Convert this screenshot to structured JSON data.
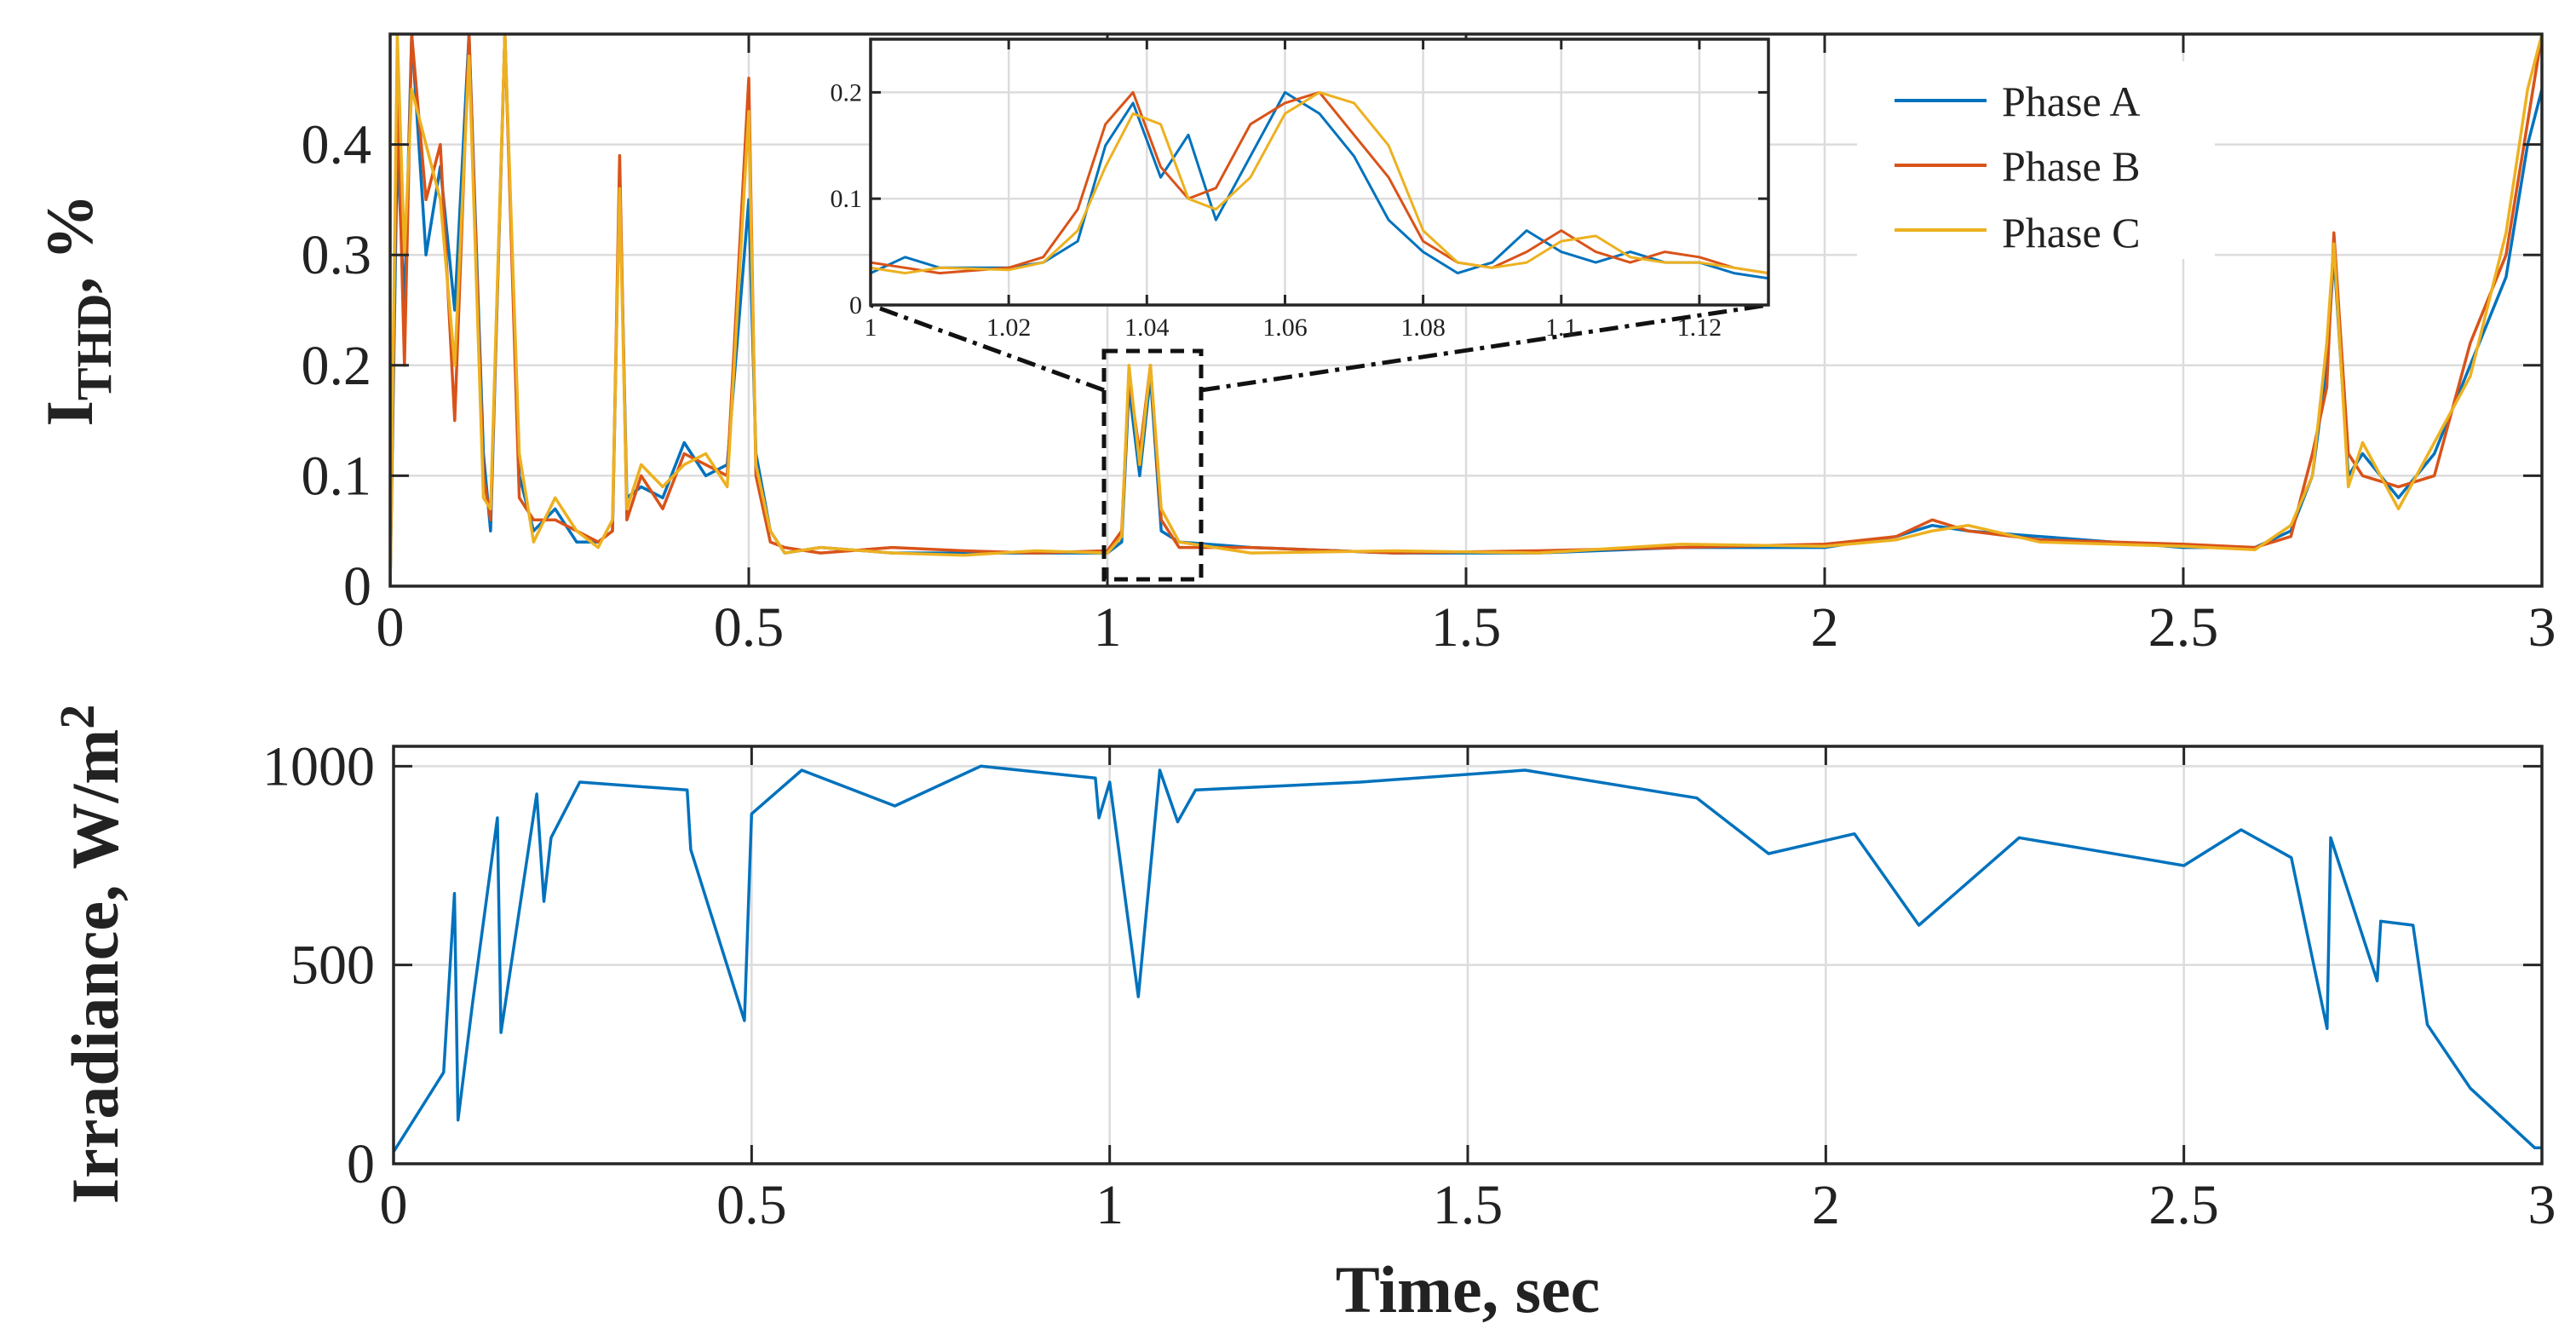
{
  "chart_data": [
    {
      "type": "line",
      "title": "",
      "xlabel": "",
      "ylabel": "I",
      "ylabel_sub": "THD",
      "ylabel_suffix": ", %",
      "xlim": [
        0,
        3
      ],
      "ylim": [
        0,
        0.5
      ],
      "xticks": [
        "0",
        "0.5",
        "1",
        "1.5",
        "2",
        "2.5",
        "3"
      ],
      "yticks": [
        "0",
        "0.1",
        "0.2",
        "0.3",
        "0.4"
      ],
      "grid": true,
      "legend_position": "top-right",
      "colors": {
        "Phase A": "#0072BD",
        "Phase B": "#D95319",
        "Phase C": "#EDB120"
      },
      "series": [
        {
          "name": "Phase A",
          "x": [
            0,
            0.01,
            0.02,
            0.03,
            0.05,
            0.07,
            0.09,
            0.11,
            0.13,
            0.14,
            0.16,
            0.18,
            0.2,
            0.23,
            0.26,
            0.29,
            0.31,
            0.32,
            0.33,
            0.35,
            0.38,
            0.41,
            0.44,
            0.47,
            0.5,
            0.51,
            0.53,
            0.55,
            0.6,
            0.7,
            0.8,
            0.9,
            1.0,
            1.02,
            1.03,
            1.045,
            1.06,
            1.075,
            1.1,
            1.2,
            1.4,
            1.6,
            1.8,
            2.0,
            2.1,
            2.15,
            2.2,
            2.3,
            2.5,
            2.6,
            2.65,
            2.68,
            2.7,
            2.71,
            2.73,
            2.75,
            2.8,
            2.85,
            2.9,
            2.95,
            2.98,
            3.0
          ],
          "values": [
            0.0,
            0.4,
            0.25,
            0.5,
            0.3,
            0.38,
            0.25,
            0.5,
            0.12,
            0.05,
            0.5,
            0.1,
            0.05,
            0.07,
            0.04,
            0.04,
            0.05,
            0.37,
            0.08,
            0.09,
            0.08,
            0.13,
            0.1,
            0.11,
            0.35,
            0.12,
            0.05,
            0.03,
            0.035,
            0.03,
            0.03,
            0.03,
            0.03,
            0.04,
            0.18,
            0.1,
            0.19,
            0.05,
            0.04,
            0.035,
            0.03,
            0.03,
            0.035,
            0.035,
            0.045,
            0.055,
            0.05,
            0.045,
            0.035,
            0.035,
            0.05,
            0.1,
            0.2,
            0.3,
            0.1,
            0.12,
            0.08,
            0.12,
            0.2,
            0.28,
            0.4,
            0.45
          ]
        },
        {
          "name": "Phase B",
          "x": [
            0,
            0.01,
            0.02,
            0.03,
            0.05,
            0.07,
            0.09,
            0.11,
            0.13,
            0.14,
            0.16,
            0.18,
            0.2,
            0.23,
            0.26,
            0.29,
            0.31,
            0.32,
            0.33,
            0.35,
            0.38,
            0.41,
            0.44,
            0.47,
            0.5,
            0.51,
            0.53,
            0.55,
            0.6,
            0.7,
            0.8,
            0.9,
            1.0,
            1.02,
            1.03,
            1.045,
            1.06,
            1.075,
            1.1,
            1.2,
            1.4,
            1.6,
            1.8,
            2.0,
            2.1,
            2.15,
            2.2,
            2.3,
            2.5,
            2.6,
            2.65,
            2.68,
            2.7,
            2.71,
            2.73,
            2.75,
            2.8,
            2.85,
            2.9,
            2.95,
            2.98,
            3.0
          ],
          "values": [
            0.0,
            0.45,
            0.2,
            0.5,
            0.35,
            0.4,
            0.15,
            0.5,
            0.1,
            0.06,
            0.5,
            0.08,
            0.06,
            0.06,
            0.05,
            0.04,
            0.05,
            0.39,
            0.06,
            0.1,
            0.07,
            0.12,
            0.11,
            0.1,
            0.46,
            0.1,
            0.04,
            0.035,
            0.03,
            0.035,
            0.032,
            0.03,
            0.032,
            0.05,
            0.19,
            0.12,
            0.2,
            0.06,
            0.035,
            0.035,
            0.03,
            0.032,
            0.035,
            0.038,
            0.045,
            0.06,
            0.05,
            0.042,
            0.038,
            0.035,
            0.045,
            0.12,
            0.18,
            0.32,
            0.12,
            0.1,
            0.09,
            0.1,
            0.22,
            0.3,
            0.42,
            0.5
          ]
        },
        {
          "name": "Phase C",
          "x": [
            0,
            0.01,
            0.02,
            0.03,
            0.05,
            0.07,
            0.09,
            0.11,
            0.13,
            0.14,
            0.16,
            0.18,
            0.2,
            0.23,
            0.26,
            0.29,
            0.31,
            0.32,
            0.33,
            0.35,
            0.38,
            0.41,
            0.44,
            0.47,
            0.5,
            0.51,
            0.53,
            0.55,
            0.6,
            0.7,
            0.8,
            0.9,
            1.0,
            1.02,
            1.03,
            1.045,
            1.06,
            1.075,
            1.1,
            1.2,
            1.4,
            1.6,
            1.8,
            2.0,
            2.1,
            2.15,
            2.2,
            2.3,
            2.5,
            2.6,
            2.65,
            2.68,
            2.7,
            2.71,
            2.73,
            2.75,
            2.8,
            2.85,
            2.9,
            2.95,
            2.98,
            3.0
          ],
          "values": [
            0.0,
            0.5,
            0.3,
            0.45,
            0.4,
            0.35,
            0.2,
            0.48,
            0.08,
            0.07,
            0.5,
            0.12,
            0.04,
            0.08,
            0.05,
            0.035,
            0.06,
            0.36,
            0.07,
            0.11,
            0.09,
            0.11,
            0.12,
            0.09,
            0.43,
            0.11,
            0.05,
            0.03,
            0.035,
            0.03,
            0.028,
            0.032,
            0.03,
            0.045,
            0.2,
            0.11,
            0.2,
            0.07,
            0.04,
            0.03,
            0.032,
            0.03,
            0.038,
            0.036,
            0.042,
            0.05,
            0.055,
            0.04,
            0.036,
            0.033,
            0.055,
            0.1,
            0.22,
            0.31,
            0.09,
            0.13,
            0.07,
            0.13,
            0.19,
            0.32,
            0.45,
            0.5
          ]
        }
      ]
    },
    {
      "type": "line",
      "title": "",
      "xlabel": "Time, sec",
      "ylabel": "Irradiance, W/m",
      "ylabel_sup": "2",
      "xlim": [
        0,
        3
      ],
      "ylim": [
        0,
        1050
      ],
      "xticks": [
        "0",
        "0.5",
        "1",
        "1.5",
        "2",
        "2.5",
        "3"
      ],
      "yticks": [
        "0",
        "500",
        "1000"
      ],
      "grid": true,
      "series": [
        {
          "name": "Irradiance",
          "color": "#0072BD",
          "x": [
            0,
            0.07,
            0.085,
            0.09,
            0.11,
            0.145,
            0.15,
            0.2,
            0.21,
            0.22,
            0.26,
            0.41,
            0.415,
            0.49,
            0.5,
            0.57,
            0.7,
            0.82,
            0.98,
            0.985,
            1.0,
            1.04,
            1.07,
            1.095,
            1.12,
            1.35,
            1.58,
            1.82,
            1.92,
            2.04,
            2.13,
            2.27,
            2.5,
            2.58,
            2.65,
            2.7,
            2.705,
            2.77,
            2.775,
            2.82,
            2.84,
            2.9,
            2.99,
            3.0
          ],
          "values": [
            30,
            230,
            680,
            110,
            400,
            870,
            330,
            930,
            660,
            820,
            960,
            940,
            790,
            360,
            880,
            990,
            900,
            1000,
            970,
            870,
            960,
            420,
            990,
            860,
            940,
            960,
            990,
            920,
            780,
            830,
            600,
            820,
            750,
            840,
            770,
            340,
            820,
            460,
            610,
            600,
            350,
            190,
            40,
            40
          ]
        }
      ]
    },
    {
      "type": "line",
      "title": "",
      "role": "inset zoom of top panel",
      "xlim": [
        1,
        1.13
      ],
      "ylim": [
        0,
        0.25
      ],
      "xticks": [
        "1",
        "1.02",
        "1.04",
        "1.06",
        "1.08",
        "1.1",
        "1.12"
      ],
      "yticks": [
        "0",
        "0.1",
        "0.2"
      ],
      "grid": true,
      "series": [
        {
          "name": "Phase A",
          "x": [
            1,
            1.005,
            1.01,
            1.02,
            1.025,
            1.03,
            1.034,
            1.038,
            1.042,
            1.046,
            1.05,
            1.055,
            1.06,
            1.065,
            1.07,
            1.075,
            1.08,
            1.085,
            1.09,
            1.095,
            1.1,
            1.105,
            1.11,
            1.115,
            1.12,
            1.125,
            1.13
          ],
          "values": [
            0.03,
            0.045,
            0.035,
            0.035,
            0.04,
            0.06,
            0.15,
            0.19,
            0.12,
            0.16,
            0.08,
            0.14,
            0.2,
            0.18,
            0.14,
            0.08,
            0.05,
            0.03,
            0.04,
            0.07,
            0.05,
            0.04,
            0.05,
            0.04,
            0.04,
            0.03,
            0.025
          ]
        },
        {
          "name": "Phase B",
          "x": [
            1,
            1.005,
            1.01,
            1.02,
            1.025,
            1.03,
            1.034,
            1.038,
            1.042,
            1.046,
            1.05,
            1.055,
            1.06,
            1.065,
            1.07,
            1.075,
            1.08,
            1.085,
            1.09,
            1.095,
            1.1,
            1.105,
            1.11,
            1.115,
            1.12,
            1.125,
            1.13
          ],
          "values": [
            0.04,
            0.035,
            0.03,
            0.035,
            0.045,
            0.09,
            0.17,
            0.2,
            0.13,
            0.1,
            0.11,
            0.17,
            0.19,
            0.2,
            0.16,
            0.12,
            0.06,
            0.04,
            0.035,
            0.05,
            0.07,
            0.05,
            0.04,
            0.05,
            0.045,
            0.035,
            0.03
          ]
        },
        {
          "name": "Phase C",
          "x": [
            1,
            1.005,
            1.01,
            1.02,
            1.025,
            1.03,
            1.034,
            1.038,
            1.042,
            1.046,
            1.05,
            1.055,
            1.06,
            1.065,
            1.07,
            1.075,
            1.08,
            1.085,
            1.09,
            1.095,
            1.1,
            1.105,
            1.11,
            1.115,
            1.12,
            1.125,
            1.13
          ],
          "values": [
            0.035,
            0.03,
            0.035,
            0.033,
            0.04,
            0.07,
            0.13,
            0.18,
            0.17,
            0.1,
            0.09,
            0.12,
            0.18,
            0.2,
            0.19,
            0.15,
            0.07,
            0.04,
            0.035,
            0.04,
            0.06,
            0.065,
            0.045,
            0.04,
            0.04,
            0.035,
            0.03
          ]
        }
      ]
    }
  ],
  "colors": {
    "phase_a": "#0072BD",
    "phase_b": "#D95319",
    "phase_c": "#EDB120",
    "irradiance": "#0072BD"
  }
}
